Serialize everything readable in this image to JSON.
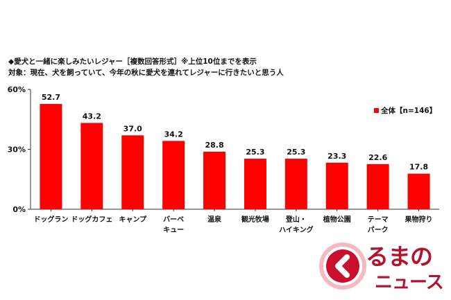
{
  "header": {
    "title": "◆愛犬と一緒に楽しみたいレジャー［複数回答形式］※上位10位までを表示",
    "subtitle": "対象：現在、犬を飼っていて、今年の秋に愛犬を連れてレジャーに行きたいと思う人"
  },
  "legend": {
    "label": "全体【n=146】",
    "color": "#ff0000"
  },
  "logo": {
    "top_text": "るまの",
    "bottom_text": "ニュース"
  },
  "chart_data": {
    "type": "bar",
    "categories": [
      [
        "ドッグラン"
      ],
      [
        "ドッグカフェ"
      ],
      [
        "キャンプ"
      ],
      [
        "バーベ",
        "キュー"
      ],
      [
        "温泉"
      ],
      [
        "観光牧場"
      ],
      [
        "登山・",
        "ハイキング"
      ],
      [
        "植物公園"
      ],
      [
        "テーマ",
        "パーク"
      ],
      [
        "果物狩り"
      ]
    ],
    "series": [
      {
        "name": "全体【n=146】",
        "values": [
          52.7,
          43.2,
          37.0,
          34.2,
          28.8,
          25.3,
          25.3,
          23.3,
          22.6,
          17.8
        ]
      }
    ],
    "value_labels": [
      "52.7",
      "43.2",
      "37.0",
      "34.2",
      "28.8",
      "25.3",
      "25.3",
      "23.3",
      "22.6",
      "17.8"
    ],
    "yticks": [
      "0%",
      "30%",
      "60%"
    ],
    "ytick_values": [
      0,
      30,
      60
    ],
    "ylim": [
      0,
      60
    ],
    "bar_color": "#ff0000",
    "legend_position": "top-right",
    "grid": false
  }
}
